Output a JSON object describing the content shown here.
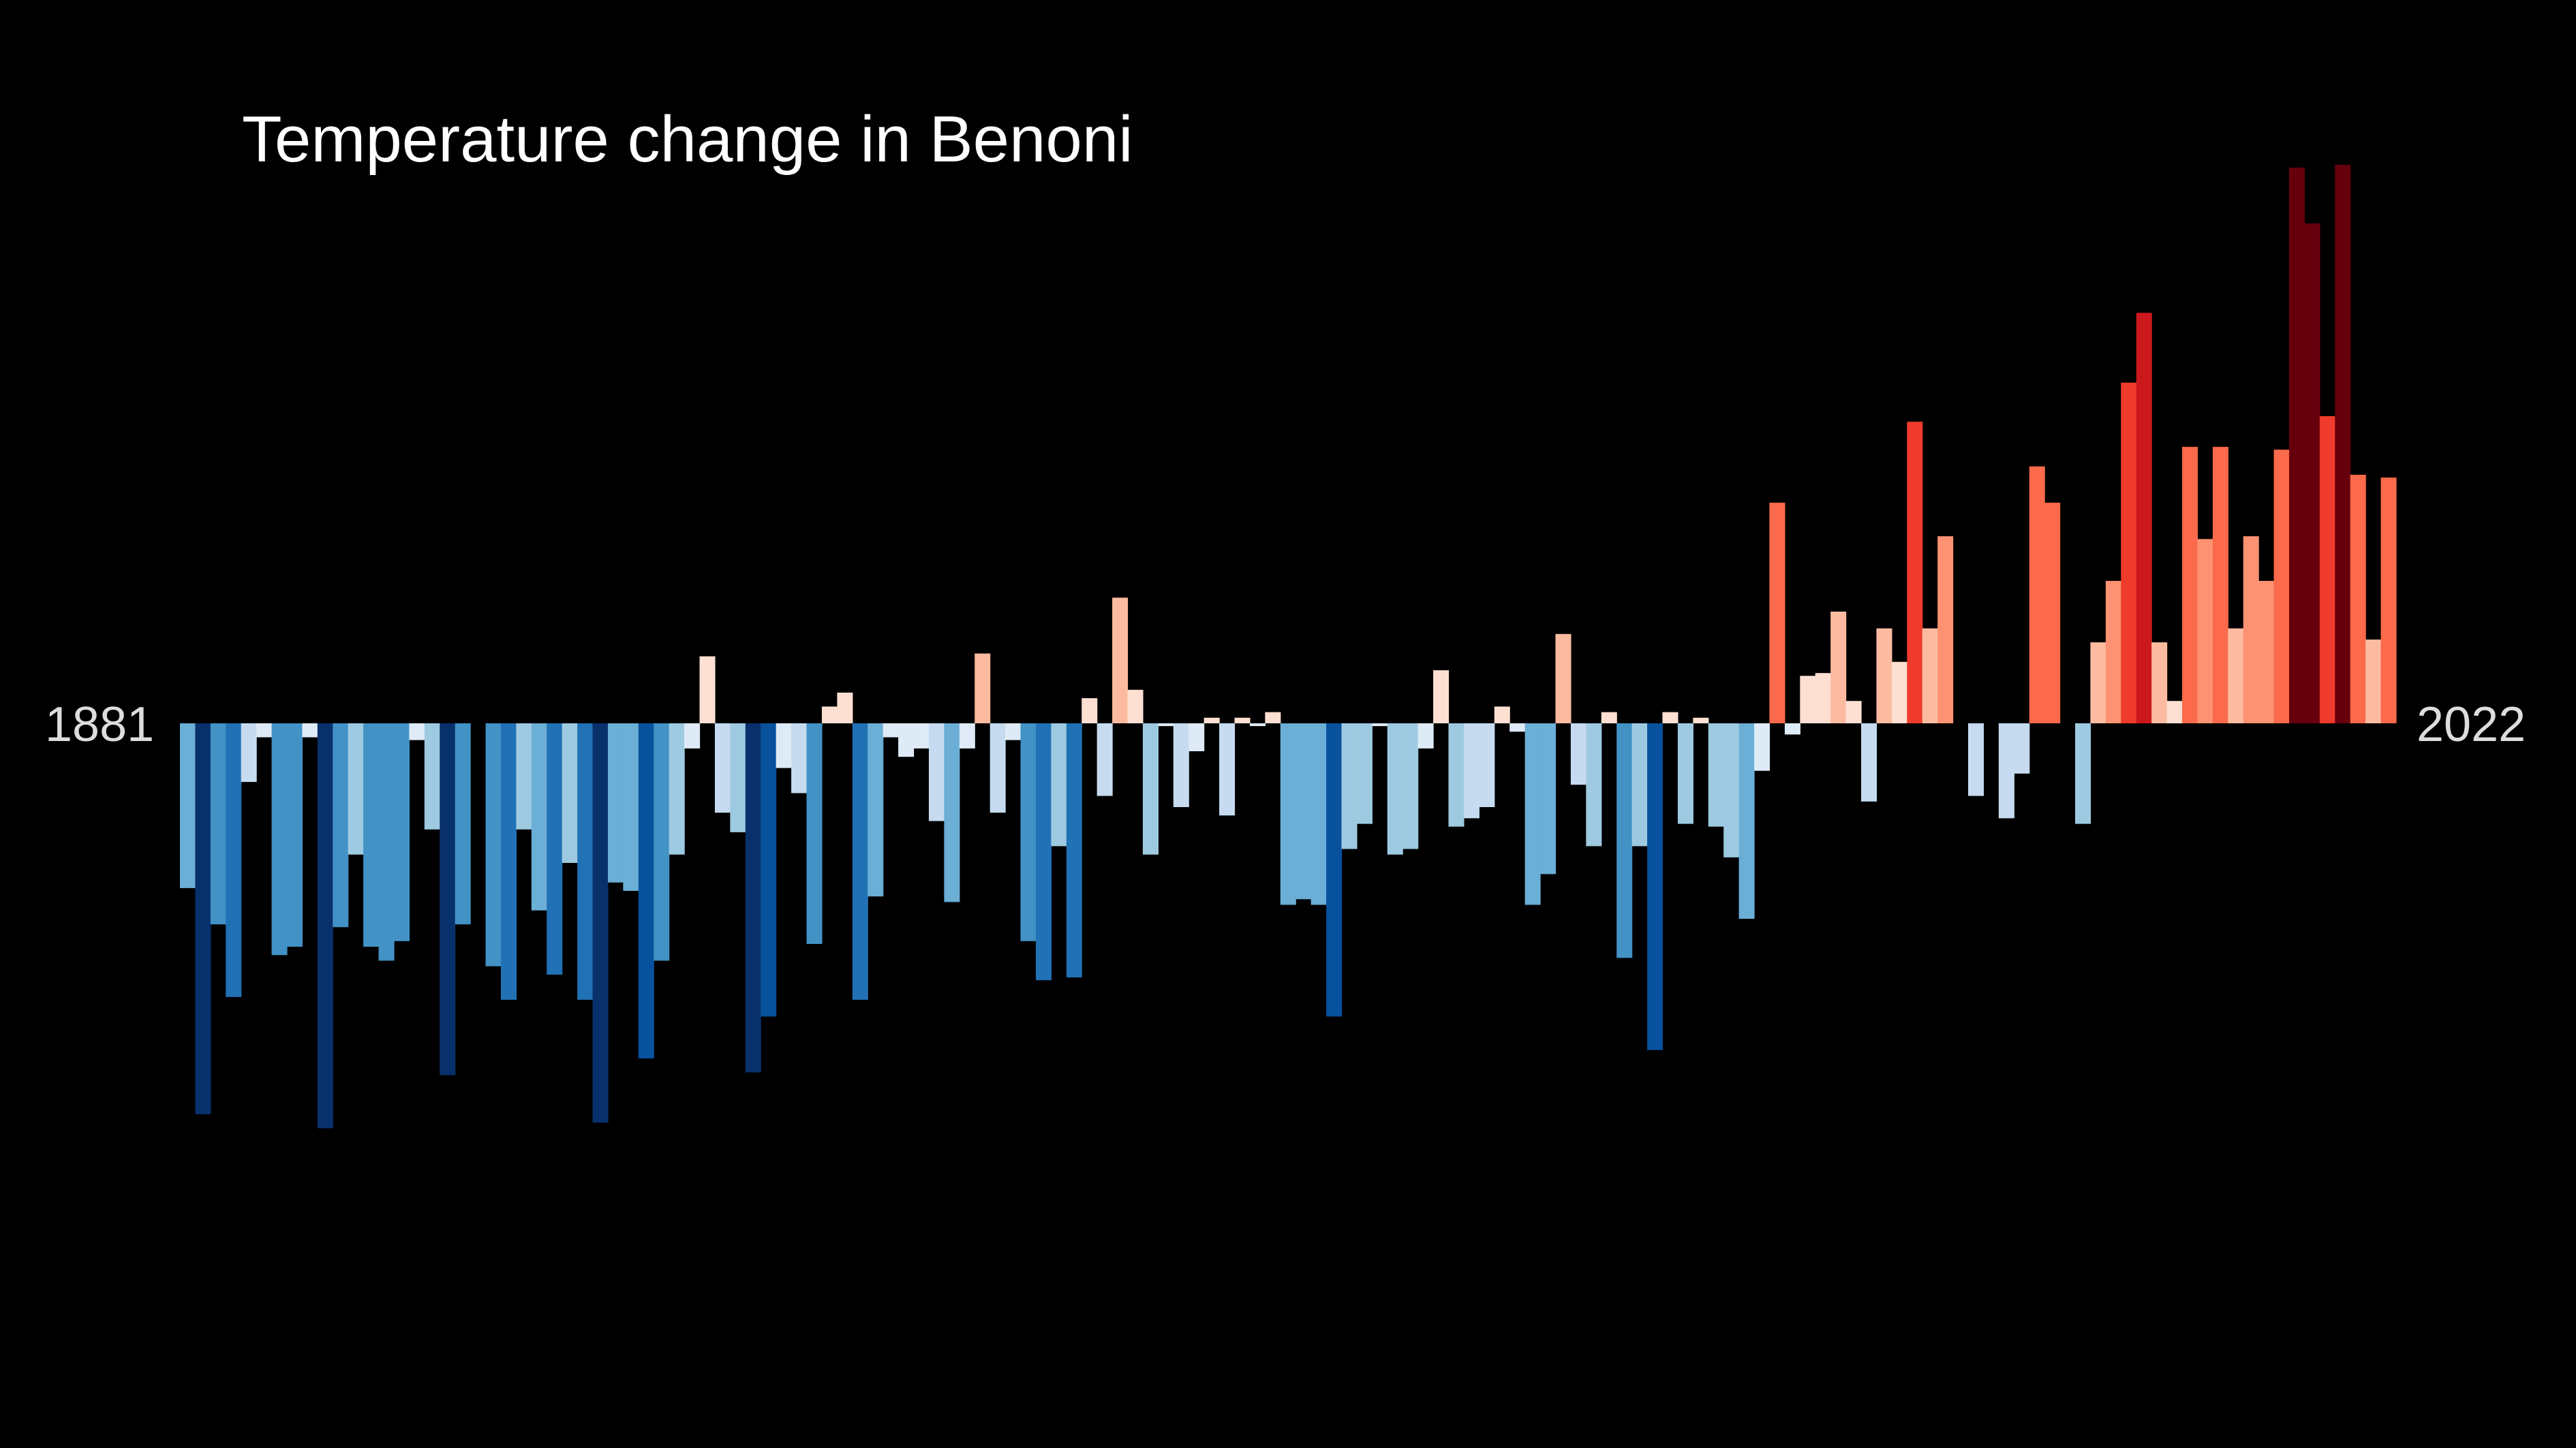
{
  "title": "Temperature change in Benoni",
  "start_label": "1881",
  "end_label": "2022",
  "chart_data": {
    "type": "bar",
    "title": "Temperature change in Benoni",
    "x_start": 1881,
    "x_end": 2022,
    "ylim": [
      -1.4,
      2.0
    ],
    "grid": false,
    "legend": "none",
    "color_scale": [
      "#08306b",
      "#08519c",
      "#2171b5",
      "#4292c6",
      "#6baed6",
      "#9ecae1",
      "#c6dbef",
      "#deebf7",
      "#fee0d2",
      "#fcbba1",
      "#fc9272",
      "#fb6a4a",
      "#ef3b2c",
      "#cb181d",
      "#a50f15",
      "#67000d"
    ],
    "values": [
      -0.59,
      -1.4,
      -0.72,
      -0.98,
      -0.21,
      -0.05,
      -0.83,
      -0.8,
      -0.05,
      -1.45,
      -0.73,
      -0.47,
      -0.8,
      -0.85,
      -0.78,
      -0.06,
      -0.38,
      -1.26,
      -0.72,
      0.0,
      -0.87,
      -0.99,
      -0.38,
      -0.67,
      -0.9,
      -0.5,
      -0.99,
      -1.43,
      -0.57,
      -0.6,
      -1.2,
      -0.85,
      -0.47,
      -0.09,
      0.24,
      -0.32,
      -0.39,
      -1.25,
      -1.05,
      -0.16,
      -0.25,
      -0.79,
      0.06,
      0.11,
      -0.99,
      -0.62,
      -0.05,
      -0.12,
      -0.09,
      -0.35,
      -0.64,
      -0.09,
      0.25,
      -0.32,
      -0.06,
      -0.78,
      -0.92,
      -0.44,
      -0.91,
      0.09,
      -0.26,
      0.45,
      0.12,
      -0.47,
      -0.01,
      -0.3,
      -0.1,
      0.02,
      -0.33,
      0.02,
      -0.01,
      0.04,
      -0.65,
      -0.63,
      -0.65,
      -1.05,
      -0.45,
      -0.36,
      -0.01,
      -0.47,
      -0.45,
      -0.09,
      0.19,
      -0.37,
      -0.34,
      -0.3,
      0.06,
      -0.03,
      -0.65,
      -0.54,
      0.32,
      -0.22,
      -0.44,
      0.04,
      -0.84,
      -0.44,
      -1.17,
      0.04,
      -0.36,
      0.02,
      -0.37,
      -0.48,
      -0.7,
      -0.17,
      0.79,
      -0.04,
      0.17,
      0.18,
      0.4,
      0.08,
      -0.28,
      0.34,
      0.22,
      1.08,
      0.34,
      0.67,
      0.0,
      -0.26,
      0.0,
      -0.34,
      -0.18,
      0.92,
      0.79,
      0.0,
      -0.36,
      0.29,
      0.51,
      1.22,
      1.47,
      0.29,
      0.08,
      0.99,
      0.66,
      0.99,
      0.34,
      0.67,
      0.51,
      0.98,
      1.99,
      1.79,
      1.1,
      2.0,
      0.89,
      0.3,
      0.88
    ]
  }
}
